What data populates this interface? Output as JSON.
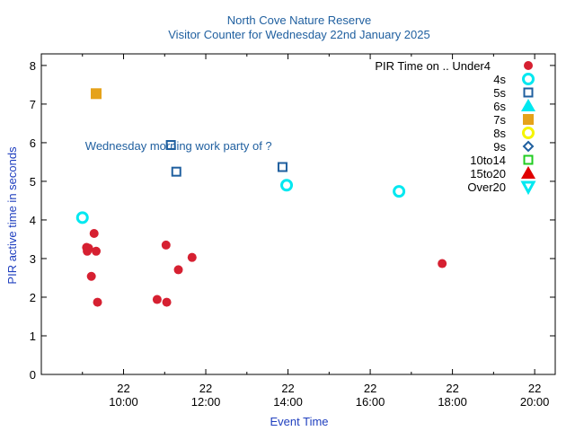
{
  "chart_data": {
    "type": "scatter",
    "title": "North Cove Nature Reserve",
    "subtitle": "Visitor Counter for Wednesday 22nd January 2025",
    "xlabel": "Event Time",
    "ylabel": "PIR active time in seconds",
    "xlim": [
      "2025-01-22 08:00",
      "2025-01-22 20:30"
    ],
    "ylim": [
      0,
      8.3
    ],
    "x_ticks": [
      {
        "day": "22",
        "time": "10:00"
      },
      {
        "day": "22",
        "time": "12:00"
      },
      {
        "day": "22",
        "time": "14:00"
      },
      {
        "day": "22",
        "time": "16:00"
      },
      {
        "day": "22",
        "time": "18:00"
      },
      {
        "day": "22",
        "time": "20:00"
      }
    ],
    "y_ticks": [
      "0",
      "1",
      "2",
      "3",
      "4",
      "5",
      "6",
      "7",
      "8"
    ],
    "annotation": {
      "text": "Wednesday morning work party of ?",
      "x": "09:04",
      "y": 5.9
    },
    "legend_title": "PIR Time on ..",
    "legend_position": "top-right",
    "series": [
      {
        "name": "Under4",
        "marker": "filled-circle",
        "color": "#d62031",
        "points": [
          {
            "x": "09:06",
            "y": 3.29
          },
          {
            "x": "09:07",
            "y": 3.19
          },
          {
            "x": "09:09",
            "y": 3.27
          },
          {
            "x": "09:13",
            "y": 2.54
          },
          {
            "x": "09:17",
            "y": 3.65
          },
          {
            "x": "09:20",
            "y": 3.19
          },
          {
            "x": "09:22",
            "y": 1.87
          },
          {
            "x": "10:49",
            "y": 1.94
          },
          {
            "x": "11:02",
            "y": 3.35
          },
          {
            "x": "11:03",
            "y": 1.87
          },
          {
            "x": "11:20",
            "y": 2.71
          },
          {
            "x": "11:40",
            "y": 3.03
          },
          {
            "x": "17:45",
            "y": 2.87
          }
        ]
      },
      {
        "name": "4s",
        "marker": "open-circle",
        "color": "#00e8f0",
        "points": [
          {
            "x": "09:00",
            "y": 4.06
          },
          {
            "x": "13:58",
            "y": 4.9
          },
          {
            "x": "16:42",
            "y": 4.74
          }
        ]
      },
      {
        "name": "5s",
        "marker": "open-square",
        "color": "#1f5f9f",
        "points": [
          {
            "x": "11:09",
            "y": 5.94
          },
          {
            "x": "11:17",
            "y": 5.25
          },
          {
            "x": "13:52",
            "y": 5.37
          }
        ]
      },
      {
        "name": "6s",
        "marker": "filled-triangle-up",
        "color": "#00e8f0",
        "points": []
      },
      {
        "name": "7s",
        "marker": "filled-square",
        "color": "#e5a21a",
        "points": [
          {
            "x": "09:20",
            "y": 7.27
          }
        ]
      },
      {
        "name": "8s",
        "marker": "open-circle",
        "color": "#f5f500",
        "points": []
      },
      {
        "name": "9s",
        "marker": "open-diamond",
        "color": "#1f5f9f",
        "points": []
      },
      {
        "name": "10to14",
        "marker": "open-square",
        "color": "#22cc22",
        "points": []
      },
      {
        "name": "15to20",
        "marker": "filled-triangle-up",
        "color": "#e00000",
        "points": []
      },
      {
        "name": "Over20",
        "marker": "open-triangle-down",
        "color": "#00e8f0",
        "points": []
      }
    ]
  }
}
